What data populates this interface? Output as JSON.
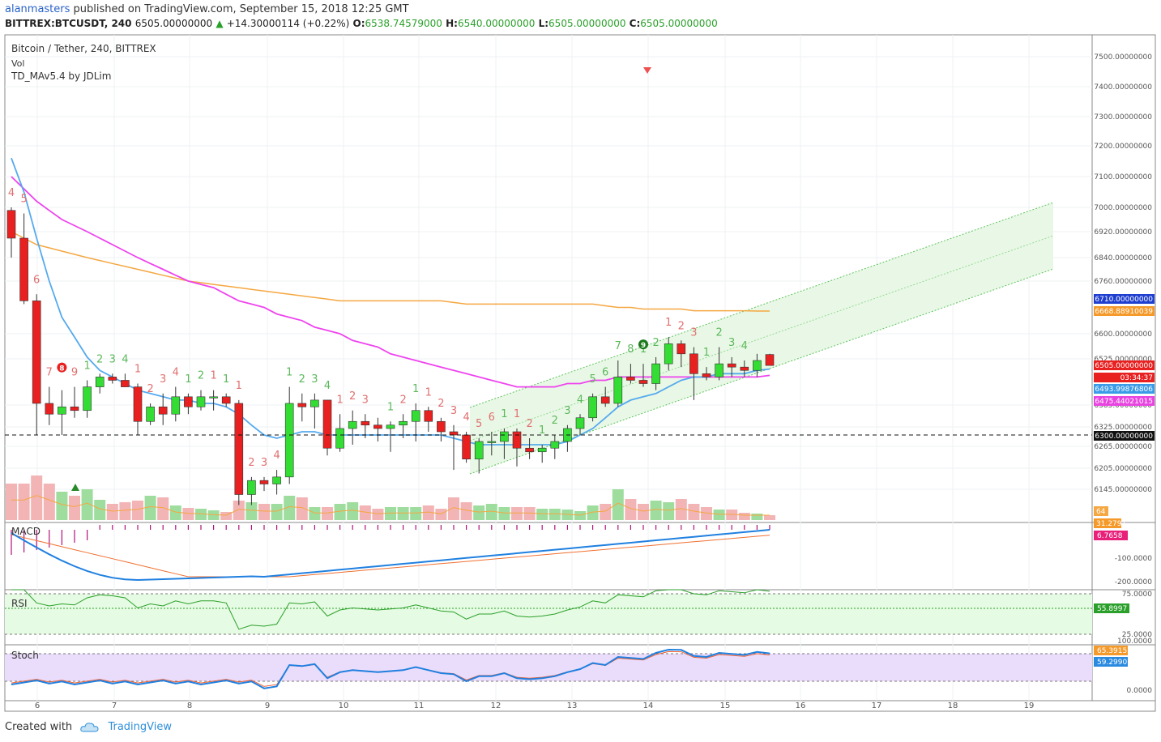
{
  "header": {
    "author": "alanmasters",
    "published": "published on TradingView.com, September 15, 2018 12:25 GMT"
  },
  "ohlc": {
    "symbol": "BITTREX:BTCUSDT, 240",
    "price": "6505.00000000",
    "change": "+14.30000114 (+0.22%)",
    "o_label": "O:",
    "o": "6538.74579000",
    "h_label": "H:",
    "h": "6540.00000000",
    "l_label": "L:",
    "l": "6505.00000000",
    "c_label": "C:",
    "c": "6505.00000000"
  },
  "legend": {
    "title": "Bitcoin / Tether, 240, BITTREX",
    "vol": "Vol",
    "indicator": "TD_MAv5.4 by JDLim"
  },
  "pane_labels": {
    "macd": "MACD",
    "rsi": "RSI",
    "stoch": "Stoch"
  },
  "footer": {
    "created": "Created with",
    "brand": "TradingView"
  },
  "colors": {
    "up": "#33dd33",
    "down": "#e82020",
    "ema_blue": "#55aaee",
    "ma_magenta": "#ee44ee",
    "ma_orange": "#f5a742",
    "channel": "#5cc35c"
  },
  "chart_data": {
    "type": "candlestick",
    "price_axis_labels": [
      "7500.00000000",
      "7400.00000000",
      "7300.00000000",
      "7200.00000000",
      "7100.00000000",
      "7000.00000000",
      "6920.00000000",
      "6840.00000000",
      "6760.00000000",
      "6600.00000000",
      "6525.00000000",
      "6385.00000000",
      "6325.00000000",
      "6265.00000000",
      "6205.00000000",
      "6145.00000000"
    ],
    "x_tick_labels": [
      "6",
      "7",
      "8",
      "9",
      "10",
      "11",
      "12",
      "13",
      "14",
      "15",
      "16",
      "17",
      "18",
      "19"
    ],
    "price_tags": [
      {
        "text": "6710.00000000",
        "color": "#1f3fd0"
      },
      {
        "text": "6668.88910039",
        "color": "#f59a2a"
      },
      {
        "text": "6505.00000000",
        "color": "#e82020"
      },
      {
        "text": "03:34:37",
        "color": "#e82020"
      },
      {
        "text": "6493.99876806",
        "color": "#3a9be8"
      },
      {
        "text": "6475.44021015",
        "color": "#e844e0"
      },
      {
        "text": "6300.00000000",
        "color": "#111111"
      }
    ],
    "volume_tags": [
      "64",
      "31.2791"
    ],
    "macd": {
      "axis_labels": [
        "-100.0000",
        "-200.0000"
      ],
      "tag": "6.7658"
    },
    "rsi": {
      "axis_labels": [
        "75.0000",
        "25.0000"
      ],
      "tag": "55.8997"
    },
    "stoch": {
      "axis_labels": [
        "100.0000",
        "0.0000"
      ],
      "tags": [
        "65.3915",
        "59.2990"
      ]
    },
    "candles": [
      [
        6990,
        7000,
        6840,
        6900
      ],
      [
        6900,
        6980,
        6690,
        6700
      ],
      [
        6700,
        6720,
        6300,
        6390
      ],
      [
        6390,
        6440,
        6330,
        6360
      ],
      [
        6360,
        6430,
        6300,
        6380
      ],
      [
        6380,
        6440,
        6350,
        6370
      ],
      [
        6370,
        6460,
        6350,
        6440
      ],
      [
        6440,
        6480,
        6420,
        6470
      ],
      [
        6470,
        6480,
        6450,
        6460
      ],
      [
        6460,
        6480,
        6440,
        6440
      ],
      [
        6440,
        6450,
        6300,
        6340
      ],
      [
        6340,
        6390,
        6330,
        6380
      ],
      [
        6380,
        6420,
        6330,
        6360
      ],
      [
        6360,
        6440,
        6340,
        6410
      ],
      [
        6410,
        6420,
        6360,
        6380
      ],
      [
        6380,
        6430,
        6370,
        6410
      ],
      [
        6410,
        6430,
        6370,
        6410
      ],
      [
        6410,
        6420,
        6380,
        6390
      ],
      [
        6390,
        6400,
        6100,
        6130
      ],
      [
        6130,
        6180,
        6100,
        6170
      ],
      [
        6170,
        6180,
        6140,
        6160
      ],
      [
        6160,
        6200,
        6130,
        6180
      ],
      [
        6180,
        6440,
        6160,
        6390
      ],
      [
        6390,
        6420,
        6340,
        6380
      ],
      [
        6380,
        6420,
        6320,
        6400
      ],
      [
        6400,
        6400,
        6240,
        6260
      ],
      [
        6260,
        6360,
        6250,
        6320
      ],
      [
        6320,
        6370,
        6270,
        6340
      ],
      [
        6340,
        6360,
        6290,
        6330
      ],
      [
        6330,
        6350,
        6280,
        6320
      ],
      [
        6320,
        6340,
        6250,
        6330
      ],
      [
        6330,
        6360,
        6290,
        6340
      ],
      [
        6340,
        6390,
        6280,
        6370
      ],
      [
        6370,
        6380,
        6310,
        6340
      ],
      [
        6340,
        6350,
        6280,
        6310
      ],
      [
        6310,
        6330,
        6200,
        6300
      ],
      [
        6300,
        6310,
        6220,
        6230
      ],
      [
        6230,
        6290,
        6190,
        6280
      ],
      [
        6280,
        6310,
        6240,
        6280
      ],
      [
        6280,
        6320,
        6230,
        6310
      ],
      [
        6310,
        6320,
        6210,
        6260
      ],
      [
        6260,
        6290,
        6230,
        6250
      ],
      [
        6250,
        6270,
        6220,
        6260
      ],
      [
        6260,
        6300,
        6230,
        6280
      ],
      [
        6280,
        6330,
        6250,
        6320
      ],
      [
        6320,
        6360,
        6300,
        6350
      ],
      [
        6350,
        6420,
        6340,
        6410
      ],
      [
        6410,
        6440,
        6380,
        6390
      ],
      [
        6390,
        6520,
        6380,
        6470
      ],
      [
        6470,
        6510,
        6450,
        6460
      ],
      [
        6460,
        6510,
        6440,
        6450
      ],
      [
        6450,
        6530,
        6430,
        6510
      ],
      [
        6510,
        6590,
        6490,
        6570
      ],
      [
        6570,
        6580,
        6500,
        6540
      ],
      [
        6540,
        6560,
        6400,
        6480
      ],
      [
        6480,
        6500,
        6460,
        6470
      ],
      [
        6470,
        6560,
        6460,
        6510
      ],
      [
        6510,
        6530,
        6470,
        6500
      ],
      [
        6500,
        6520,
        6470,
        6490
      ],
      [
        6490,
        6540,
        6470,
        6520
      ],
      [
        6538,
        6540,
        6505,
        6505
      ]
    ],
    "volume": [
      45,
      45,
      55,
      45,
      35,
      30,
      38,
      25,
      20,
      22,
      24,
      30,
      28,
      18,
      15,
      14,
      12,
      10,
      24,
      22,
      20,
      20,
      30,
      28,
      16,
      16,
      20,
      22,
      18,
      14,
      16,
      16,
      16,
      18,
      14,
      28,
      22,
      18,
      20,
      16,
      16,
      16,
      14,
      14,
      13,
      11,
      18,
      20,
      38,
      26,
      20,
      24,
      22,
      26,
      20,
      16,
      13,
      13,
      9,
      8,
      6
    ],
    "ema_fast": [
      7160,
      7050,
      6900,
      6760,
      6650,
      6590,
      6530,
      6490,
      6470,
      6450,
      6430,
      6420,
      6410,
      6400,
      6400,
      6390,
      6390,
      6380,
      6360,
      6330,
      6300,
      6290,
      6300,
      6310,
      6310,
      6300,
      6300,
      6300,
      6300,
      6300,
      6300,
      6300,
      6300,
      6300,
      6300,
      6290,
      6280,
      6270,
      6270,
      6270,
      6270,
      6270,
      6270,
      6270,
      6280,
      6300,
      6320,
      6350,
      6380,
      6400,
      6410,
      6420,
      6440,
      6460,
      6470,
      6470,
      6480,
      6480,
      6480,
      6490,
      6494
    ],
    "ma_magenta": [
      7100,
      7060,
      7020,
      6990,
      6960,
      6940,
      6920,
      6900,
      6880,
      6860,
      6840,
      6820,
      6800,
      6780,
      6760,
      6750,
      6740,
      6720,
      6700,
      6690,
      6680,
      6660,
      6650,
      6640,
      6620,
      6610,
      6600,
      6580,
      6570,
      6560,
      6540,
      6530,
      6520,
      6510,
      6500,
      6490,
      6480,
      6470,
      6460,
      6450,
      6440,
      6440,
      6440,
      6440,
      6450,
      6450,
      6460,
      6460,
      6470,
      6470,
      6470,
      6470,
      6470,
      6470,
      6470,
      6470,
      6470,
      6470,
      6470,
      6470,
      6475
    ],
    "ma_orange": [
      6920,
      6900,
      6880,
      6870,
      6860,
      6850,
      6840,
      6830,
      6820,
      6810,
      6800,
      6790,
      6780,
      6770,
      6760,
      6755,
      6750,
      6745,
      6740,
      6735,
      6730,
      6725,
      6720,
      6715,
      6710,
      6705,
      6700,
      6700,
      6700,
      6700,
      6700,
      6700,
      6700,
      6700,
      6700,
      6695,
      6690,
      6690,
      6690,
      6690,
      6690,
      6690,
      6690,
      6690,
      6690,
      6690,
      6690,
      6685,
      6680,
      6680,
      6675,
      6675,
      6675,
      6675,
      6670,
      6670,
      6670,
      6670,
      6670,
      6669,
      6669
    ]
  },
  "td_counts": {
    "top": [
      {
        "i": 0,
        "t": "4",
        "c": "r"
      },
      {
        "i": 1,
        "t": "5",
        "c": "r"
      },
      {
        "i": 2,
        "t": "6",
        "c": "r"
      },
      {
        "i": 3,
        "t": "7",
        "c": "r"
      },
      {
        "i": 5,
        "t": "9",
        "c": "r"
      },
      {
        "i": 6,
        "t": "1",
        "c": "g"
      },
      {
        "i": 7,
        "t": "2",
        "c": "g"
      },
      {
        "i": 8,
        "t": "3",
        "c": "g"
      },
      {
        "i": 9,
        "t": "4",
        "c": "g"
      },
      {
        "i": 10,
        "t": "1",
        "c": "r"
      },
      {
        "i": 11,
        "t": "2",
        "c": "r"
      },
      {
        "i": 12,
        "t": "3",
        "c": "r"
      },
      {
        "i": 13,
        "t": "4",
        "c": "r"
      },
      {
        "i": 14,
        "t": "1",
        "c": "g"
      },
      {
        "i": 15,
        "t": "2",
        "c": "g"
      },
      {
        "i": 16,
        "t": "1",
        "c": "r"
      },
      {
        "i": 17,
        "t": "1",
        "c": "g"
      },
      {
        "i": 18,
        "t": "1",
        "c": "r"
      },
      {
        "i": 19,
        "t": "2",
        "c": "r"
      },
      {
        "i": 20,
        "t": "3",
        "c": "r"
      },
      {
        "i": 21,
        "t": "4",
        "c": "r"
      },
      {
        "i": 22,
        "t": "1",
        "c": "g"
      },
      {
        "i": 23,
        "t": "2",
        "c": "g"
      },
      {
        "i": 24,
        "t": "3",
        "c": "g"
      },
      {
        "i": 25,
        "t": "4",
        "c": "g"
      },
      {
        "i": 26,
        "t": "1",
        "c": "r"
      },
      {
        "i": 27,
        "t": "2",
        "c": "r"
      },
      {
        "i": 28,
        "t": "3",
        "c": "r"
      },
      {
        "i": 30,
        "t": "1",
        "c": "g"
      },
      {
        "i": 31,
        "t": "2",
        "c": "r"
      },
      {
        "i": 32,
        "t": "1",
        "c": "g"
      },
      {
        "i": 33,
        "t": "1",
        "c": "r"
      },
      {
        "i": 34,
        "t": "2",
        "c": "r"
      },
      {
        "i": 35,
        "t": "3",
        "c": "r"
      },
      {
        "i": 36,
        "t": "4",
        "c": "r"
      },
      {
        "i": 37,
        "t": "5",
        "c": "r"
      },
      {
        "i": 38,
        "t": "6",
        "c": "r"
      },
      {
        "i": 39,
        "t": "1",
        "c": "g"
      },
      {
        "i": 40,
        "t": "1",
        "c": "r"
      },
      {
        "i": 41,
        "t": "2",
        "c": "r"
      },
      {
        "i": 42,
        "t": "1",
        "c": "g"
      },
      {
        "i": 43,
        "t": "2",
        "c": "g"
      },
      {
        "i": 44,
        "t": "3",
        "c": "g"
      },
      {
        "i": 45,
        "t": "4",
        "c": "g"
      },
      {
        "i": 46,
        "t": "5",
        "c": "g"
      },
      {
        "i": 47,
        "t": "6",
        "c": "g"
      },
      {
        "i": 48,
        "t": "7",
        "c": "g"
      },
      {
        "i": 49,
        "t": "8",
        "c": "g"
      },
      {
        "i": 50,
        "t": "1",
        "c": "g"
      },
      {
        "i": 51,
        "t": "2",
        "c": "g"
      },
      {
        "i": 52,
        "t": "1",
        "c": "r"
      },
      {
        "i": 53,
        "t": "2",
        "c": "r"
      },
      {
        "i": 54,
        "t": "3",
        "c": "r"
      },
      {
        "i": 55,
        "t": "1",
        "c": "g"
      },
      {
        "i": 56,
        "t": "2",
        "c": "g"
      },
      {
        "i": 57,
        "t": "3",
        "c": "g"
      },
      {
        "i": 58,
        "t": "4",
        "c": "g"
      }
    ],
    "marker_red": "8",
    "marker_green": "9"
  }
}
